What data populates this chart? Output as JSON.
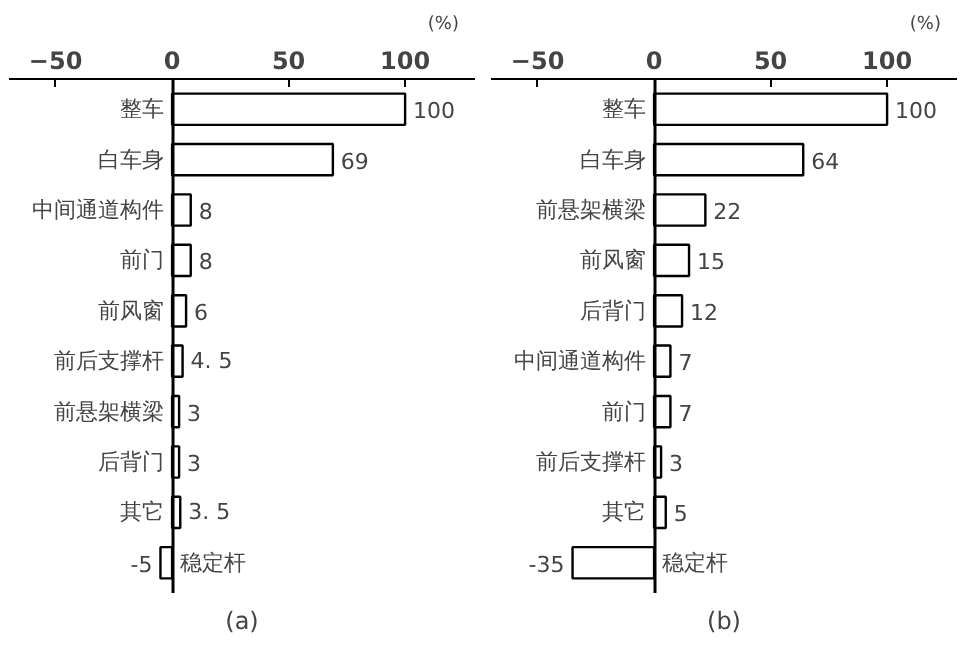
{
  "chart_data": [
    {
      "type": "bar",
      "orientation": "horizontal",
      "xlabel": "(%)",
      "categories": [
        "整车",
        "白车身",
        "中间通道构件",
        "前门",
        "前风窗",
        "前后支撑杆",
        "前悬架横梁",
        "后背门",
        "其它",
        "稳定杆"
      ],
      "values": [
        100,
        69,
        8,
        8,
        6,
        4.5,
        3,
        3,
        3.5,
        -5
      ],
      "value_labels": [
        "100",
        "69",
        "8",
        "8",
        "6",
        "4. 5",
        "3",
        "3",
        "3. 5",
        "-5"
      ],
      "color": "#ffffff",
      "xlim": [
        -70,
        130
      ],
      "xticks": [
        -50,
        0,
        50,
        100
      ],
      "grid": false,
      "annotations": [
        "(a)"
      ]
    },
    {
      "type": "bar",
      "orientation": "horizontal",
      "xlabel": "(%)",
      "categories": [
        "整车",
        "白车身",
        "前悬架横梁",
        "前风窗",
        "后背门",
        "中间通道构件",
        "前门",
        "前后支撑杆",
        "其它",
        "稳定杆"
      ],
      "values": [
        100,
        64,
        22,
        15,
        12,
        7,
        7,
        3,
        5,
        -35
      ],
      "data_labels": true,
      "color": "#ffffff",
      "xlim": [
        -70,
        130
      ],
      "xticks": [
        -50,
        0,
        50,
        100
      ],
      "grid": false,
      "annotations": [
        "(b)"
      ]
    }
  ]
}
